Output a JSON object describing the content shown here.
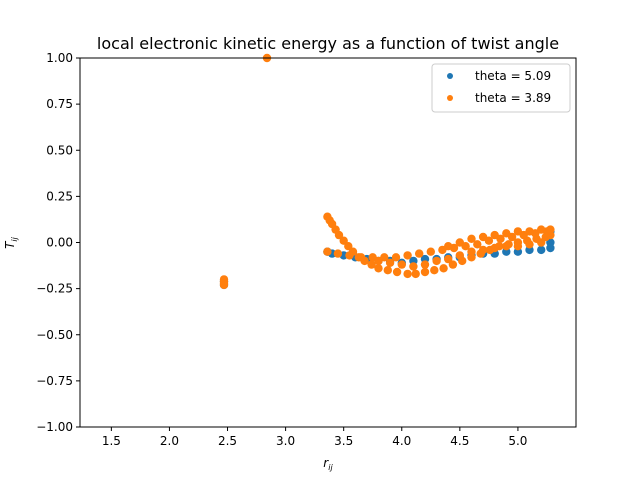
{
  "chart_data": {
    "type": "scatter",
    "title": "local electronic kinetic energy as a function of twist angle",
    "xlabel_main": "r",
    "xlabel_sub": "ij",
    "ylabel_main": "T",
    "ylabel_sub": "ij",
    "xlim": [
      1.23,
      5.5
    ],
    "ylim": [
      -1.0,
      1.0
    ],
    "xticks": [
      1.5,
      2.0,
      2.5,
      3.0,
      3.5,
      4.0,
      4.5,
      5.0
    ],
    "xtick_labels": [
      "1.5",
      "2.0",
      "2.5",
      "3.0",
      "3.5",
      "4.0",
      "4.5",
      "5.0"
    ],
    "yticks": [
      -1.0,
      -0.75,
      -0.5,
      -0.25,
      0.0,
      0.25,
      0.5,
      0.75,
      1.0
    ],
    "ytick_labels": [
      "−1.00",
      "−0.75",
      "−0.50",
      "−0.25",
      "0.00",
      "0.25",
      "0.50",
      "0.75",
      "1.00"
    ],
    "grid": false,
    "legend_position": "top-right",
    "colors": {
      "theta_509": "#1f77b4",
      "theta_389": "#ff7f0e"
    },
    "series": [
      {
        "name": "theta = 5.09",
        "color": "#1f77b4",
        "points": [
          [
            3.36,
            -0.05
          ],
          [
            3.4,
            -0.06
          ],
          [
            3.5,
            -0.07
          ],
          [
            3.6,
            -0.08
          ],
          [
            3.7,
            -0.09
          ],
          [
            3.8,
            -0.1
          ],
          [
            3.9,
            -0.1
          ],
          [
            4.0,
            -0.11
          ],
          [
            4.1,
            -0.1
          ],
          [
            4.2,
            -0.09
          ],
          [
            4.3,
            -0.09
          ],
          [
            4.4,
            -0.08
          ],
          [
            4.5,
            -0.08
          ],
          [
            4.6,
            -0.07
          ],
          [
            4.7,
            -0.06
          ],
          [
            4.8,
            -0.06
          ],
          [
            4.9,
            -0.05
          ],
          [
            5.0,
            -0.05
          ],
          [
            5.1,
            -0.04
          ],
          [
            5.2,
            -0.04
          ],
          [
            5.28,
            -0.03
          ],
          [
            5.28,
            0.0
          ],
          [
            5.28,
            0.06
          ],
          [
            2.47,
            -0.21
          ],
          [
            2.47,
            -0.23
          ]
        ]
      },
      {
        "name": "theta = 3.89",
        "color": "#ff7f0e",
        "points": [
          [
            2.47,
            -0.2
          ],
          [
            2.47,
            -0.21
          ],
          [
            2.47,
            -0.22
          ],
          [
            2.47,
            -0.23
          ],
          [
            2.84,
            1.0
          ],
          [
            3.36,
            0.14
          ],
          [
            3.38,
            0.12
          ],
          [
            3.4,
            0.1
          ],
          [
            3.43,
            0.07
          ],
          [
            3.46,
            0.04
          ],
          [
            3.5,
            0.01
          ],
          [
            3.54,
            -0.02
          ],
          [
            3.58,
            -0.05
          ],
          [
            3.63,
            -0.08
          ],
          [
            3.68,
            -0.1
          ],
          [
            3.74,
            -0.12
          ],
          [
            3.8,
            -0.14
          ],
          [
            3.88,
            -0.15
          ],
          [
            3.96,
            -0.16
          ],
          [
            4.05,
            -0.17
          ],
          [
            4.12,
            -0.17
          ],
          [
            4.2,
            -0.16
          ],
          [
            4.28,
            -0.15
          ],
          [
            4.36,
            -0.14
          ],
          [
            4.44,
            -0.12
          ],
          [
            4.52,
            -0.1
          ],
          [
            4.6,
            -0.08
          ],
          [
            4.68,
            -0.06
          ],
          [
            4.76,
            -0.04
          ],
          [
            4.84,
            -0.02
          ],
          [
            4.92,
            -0.01
          ],
          [
            5.0,
            0.0
          ],
          [
            5.08,
            0.01
          ],
          [
            5.16,
            0.02
          ],
          [
            5.24,
            0.03
          ],
          [
            5.28,
            0.04
          ],
          [
            3.36,
            -0.05
          ],
          [
            3.45,
            -0.06
          ],
          [
            3.55,
            -0.07
          ],
          [
            3.65,
            -0.08
          ],
          [
            3.75,
            -0.08
          ],
          [
            3.85,
            -0.08
          ],
          [
            3.95,
            -0.08
          ],
          [
            4.05,
            -0.07
          ],
          [
            4.15,
            -0.06
          ],
          [
            4.25,
            -0.05
          ],
          [
            4.35,
            -0.04
          ],
          [
            4.45,
            -0.03
          ],
          [
            4.55,
            -0.02
          ],
          [
            4.65,
            -0.01
          ],
          [
            4.75,
            0.01
          ],
          [
            4.85,
            0.02
          ],
          [
            4.95,
            0.03
          ],
          [
            5.05,
            0.04
          ],
          [
            5.15,
            0.05
          ],
          [
            5.25,
            0.06
          ],
          [
            4.4,
            -0.02
          ],
          [
            4.5,
            0.0
          ],
          [
            4.6,
            0.02
          ],
          [
            4.7,
            0.03
          ],
          [
            4.8,
            0.04
          ],
          [
            4.9,
            0.05
          ],
          [
            5.0,
            0.06
          ],
          [
            5.1,
            0.06
          ],
          [
            5.2,
            0.07
          ],
          [
            5.28,
            0.07
          ],
          [
            4.3,
            -0.1
          ],
          [
            4.4,
            -0.09
          ],
          [
            4.5,
            -0.07
          ],
          [
            4.6,
            -0.05
          ],
          [
            4.7,
            -0.04
          ],
          [
            4.8,
            -0.03
          ],
          [
            4.9,
            -0.02
          ],
          [
            5.0,
            -0.02
          ],
          [
            5.1,
            -0.01
          ],
          [
            5.2,
            0.0
          ],
          [
            4.0,
            -0.12
          ],
          [
            4.1,
            -0.13
          ],
          [
            4.2,
            -0.12
          ],
          [
            3.9,
            -0.11
          ],
          [
            3.8,
            -0.1
          ]
        ]
      }
    ]
  }
}
